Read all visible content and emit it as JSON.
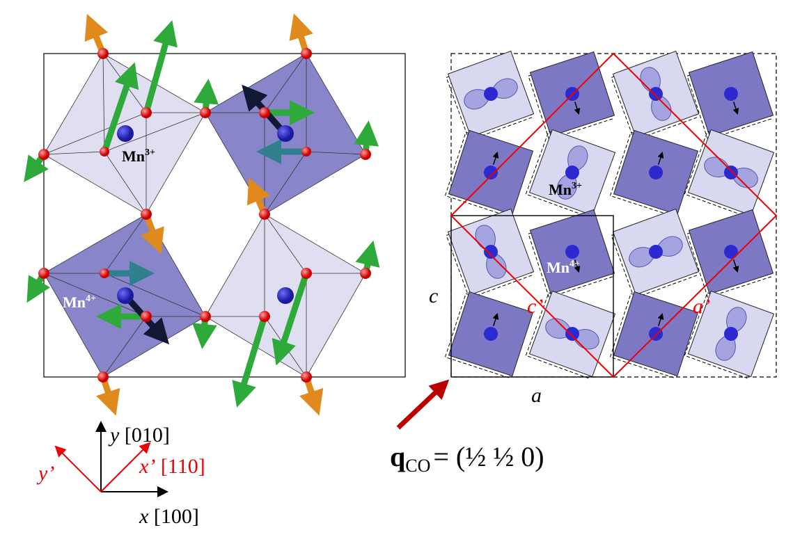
{
  "left_panel": {
    "mn3": {
      "ion": "Mn",
      "charge": "3+"
    },
    "mn4": {
      "ion": "Mn",
      "charge": "4+"
    }
  },
  "axes": {
    "y": {
      "symbol": "y",
      "direction": "[010]"
    },
    "x_prime": {
      "symbol": "x’",
      "direction": "[110]"
    },
    "y_prime": "y’",
    "x": {
      "symbol": "x",
      "direction": "[100]"
    }
  },
  "right_panel": {
    "c": "c",
    "a": "a",
    "c_prime": "c’",
    "a_prime": "a’",
    "mn3": {
      "ion": "Mn",
      "charge": "3+"
    },
    "mn4": {
      "ion": "Mn",
      "charge": "4+"
    },
    "wavevector": {
      "symbol": "q",
      "subscript": "CO",
      "value": "= (½ ½ 0)"
    }
  }
}
